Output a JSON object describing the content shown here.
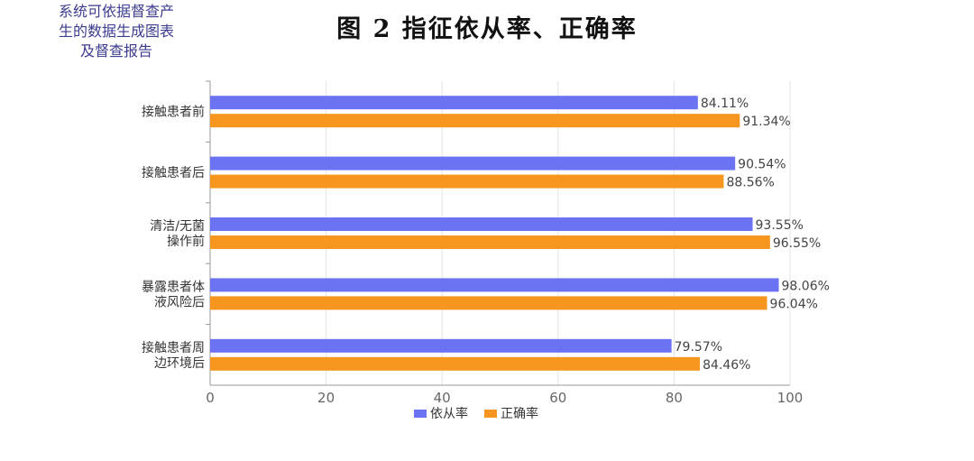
{
  "side_note": "系统可依据督查产生的数据生成图表及督查报告",
  "chart_data": {
    "type": "bar",
    "orientation": "horizontal",
    "title": "图 2  指征依从率、正确率",
    "categories": [
      [
        "接触患者前"
      ],
      [
        "接触患者后"
      ],
      [
        "清洁/无菌",
        "操作前"
      ],
      [
        "暴露患者体",
        "液风险后"
      ],
      [
        "接触患者周",
        "边环境后"
      ]
    ],
    "series": [
      {
        "name": "依从率",
        "values": [
          84.11,
          90.54,
          93.55,
          98.06,
          79.57
        ],
        "color": "#6b73f2"
      },
      {
        "name": "正确率",
        "values": [
          91.34,
          88.56,
          96.55,
          96.04,
          84.46
        ],
        "color": "#f7961e"
      }
    ],
    "value_suffix": "%",
    "xlim": [
      0,
      100
    ],
    "xticks": [
      0,
      20,
      40,
      60,
      80,
      100
    ],
    "grid": true,
    "legend_position": "bottom"
  }
}
